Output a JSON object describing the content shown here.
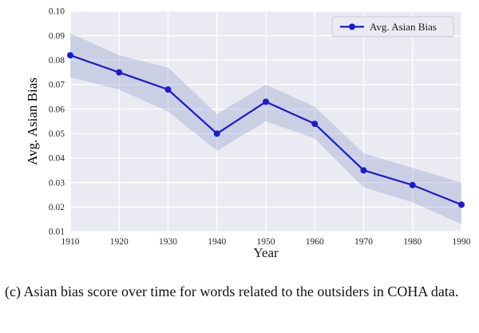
{
  "caption": "(c) Asian bias score over time for words related to the outsiders in COHA data.",
  "chart_data": {
    "type": "line",
    "title": "",
    "xlabel": "Year",
    "ylabel": "Avg. Asian Bias",
    "x": [
      1910,
      1920,
      1930,
      1940,
      1950,
      1960,
      1970,
      1980,
      1990
    ],
    "series": [
      {
        "name": "Avg. Asian Bias",
        "values": [
          0.082,
          0.075,
          0.068,
          0.05,
          0.063,
          0.054,
          0.035,
          0.029,
          0.021
        ],
        "band_upper": [
          0.091,
          0.082,
          0.077,
          0.058,
          0.07,
          0.061,
          0.042,
          0.036,
          0.03
        ],
        "band_lower": [
          0.073,
          0.068,
          0.059,
          0.043,
          0.055,
          0.048,
          0.028,
          0.022,
          0.013
        ]
      }
    ],
    "xlim": [
      1910,
      1990
    ],
    "ylim": [
      0.01,
      0.1
    ],
    "xticks": [
      1910,
      1920,
      1930,
      1940,
      1950,
      1960,
      1970,
      1980,
      1990
    ],
    "yticks": [
      0.01,
      0.02,
      0.03,
      0.04,
      0.05,
      0.06,
      0.07,
      0.08,
      0.09,
      0.1
    ],
    "grid": true,
    "legend_position": "upper right",
    "legend_label": "Avg. Asian Bias",
    "colors": {
      "line": "#1b1bcd",
      "marker": "#1b1bcd",
      "band": "#8894c8",
      "plot_bg": "#eaeaf2",
      "grid": "#ffffff",
      "ylabel": "#2424cc",
      "legend_bg": "#eaeaf2",
      "legend_border": "#c9c9d9"
    }
  }
}
